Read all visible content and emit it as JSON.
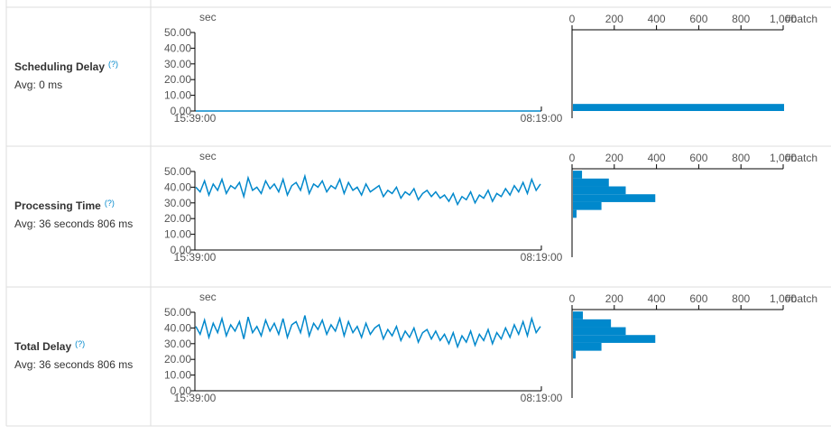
{
  "rows": [
    {
      "title": "Scheduling Delay",
      "help": "(?)",
      "avg": "Avg: 0 ms",
      "timeline": {
        "type": "line",
        "ylabel": "sec",
        "color": "#0088cc",
        "ylim": [
          0,
          50
        ],
        "yticks": [
          {
            "value": 0,
            "label": "0.00"
          },
          {
            "value": 10,
            "label": "10.00"
          },
          {
            "value": 20,
            "label": "20.00"
          },
          {
            "value": 30,
            "label": "30.00"
          },
          {
            "value": 40,
            "label": "40.00"
          },
          {
            "value": 50,
            "label": "50.00"
          }
        ],
        "xtick_labels": [
          "15:39:00",
          "08:19:00"
        ],
        "values": [
          0,
          0,
          0,
          0,
          0,
          0,
          0,
          0,
          0,
          0
        ]
      },
      "histogram": {
        "type": "histogram",
        "xlabel": "#batch",
        "color": "#0088cc",
        "xlim": [
          0,
          1000
        ],
        "xticks": [
          0,
          200,
          400,
          600,
          800,
          {
            "value": 1000,
            "label": "1,000"
          }
        ],
        "bins": [
          0,
          4.5
        ],
        "counts": [
          1000
        ]
      }
    },
    {
      "title": "Processing Time",
      "help": "(?)",
      "avg": "Avg: 36 seconds 806 ms",
      "timeline": {
        "type": "line",
        "ylabel": "sec",
        "color": "#0088cc",
        "ylim": [
          0,
          50
        ],
        "yticks": [
          {
            "value": 0,
            "label": "0.00"
          },
          {
            "value": 10,
            "label": "10.00"
          },
          {
            "value": 20,
            "label": "20.00"
          },
          {
            "value": 30,
            "label": "30.00"
          },
          {
            "value": 40,
            "label": "40.00"
          },
          {
            "value": 50,
            "label": "50.00"
          }
        ],
        "xtick_labels": [
          "15:39:00",
          "08:19:00"
        ],
        "values": [
          40,
          37,
          44,
          35,
          42,
          38,
          45,
          36,
          41,
          39,
          43,
          34,
          46,
          38,
          40,
          36,
          44,
          39,
          42,
          37,
          45,
          35,
          41,
          43,
          38,
          47,
          36,
          42,
          40,
          44,
          37,
          41,
          39,
          45,
          36,
          43,
          38,
          40,
          35,
          42,
          37,
          39,
          41,
          34,
          38,
          36,
          40,
          33,
          37,
          35,
          39,
          32,
          36,
          38,
          34,
          37,
          33,
          35,
          31,
          36,
          29,
          34,
          32,
          37,
          30,
          35,
          33,
          38,
          31,
          36,
          34,
          39,
          35,
          41,
          37,
          43,
          36,
          45,
          38,
          42
        ]
      },
      "histogram": {
        "type": "histogram",
        "xlabel": "#batch",
        "color": "#0088cc",
        "xlim": [
          0,
          1000
        ],
        "xticks": [
          0,
          200,
          400,
          600,
          800,
          {
            "value": 1000,
            "label": "1,000"
          }
        ],
        "bins": [
          20.5,
          25.5,
          30.5,
          35.5,
          40.5,
          45.5,
          50.5
        ],
        "counts": [
          17,
          135,
          390,
          250,
          170,
          43
        ]
      }
    },
    {
      "title": "Total Delay",
      "help": "(?)",
      "avg": "Avg: 36 seconds 806 ms",
      "timeline": {
        "type": "line",
        "ylabel": "sec",
        "color": "#0088cc",
        "ylim": [
          0,
          50
        ],
        "yticks": [
          {
            "value": 0,
            "label": "0.00"
          },
          {
            "value": 10,
            "label": "10.00"
          },
          {
            "value": 20,
            "label": "20.00"
          },
          {
            "value": 30,
            "label": "30.00"
          },
          {
            "value": 40,
            "label": "40.00"
          },
          {
            "value": 50,
            "label": "50.00"
          }
        ],
        "xtick_labels": [
          "15:39:00",
          "08:19:00"
        ],
        "values": [
          41,
          36,
          45,
          34,
          43,
          37,
          46,
          35,
          42,
          38,
          44,
          33,
          47,
          37,
          41,
          35,
          45,
          38,
          43,
          36,
          46,
          34,
          42,
          44,
          37,
          48,
          35,
          43,
          39,
          45,
          36,
          42,
          38,
          46,
          35,
          44,
          37,
          41,
          34,
          43,
          36,
          40,
          42,
          33,
          39,
          35,
          41,
          32,
          38,
          34,
          40,
          31,
          37,
          39,
          33,
          38,
          32,
          36,
          30,
          37,
          28,
          35,
          31,
          38,
          29,
          36,
          32,
          39,
          30,
          37,
          33,
          40,
          34,
          42,
          36,
          44,
          35,
          46,
          37,
          41
        ]
      },
      "histogram": {
        "type": "histogram",
        "xlabel": "#batch",
        "color": "#0088cc",
        "xlim": [
          0,
          1000
        ],
        "xticks": [
          0,
          200,
          400,
          600,
          800,
          {
            "value": 1000,
            "label": "1,000"
          }
        ],
        "bins": [
          20.5,
          25.5,
          30.5,
          35.5,
          40.5,
          45.5,
          50.5
        ],
        "counts": [
          13,
          135,
          390,
          250,
          180,
          47
        ]
      }
    }
  ]
}
